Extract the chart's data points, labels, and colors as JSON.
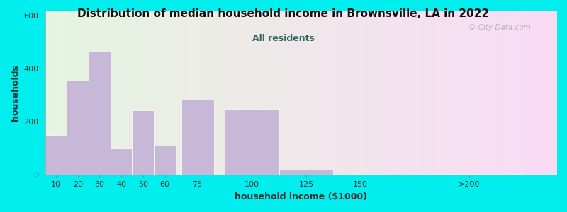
{
  "title": "Distribution of median household income in Brownsville, LA in 2022",
  "subtitle": "All residents",
  "xlabel": "household income ($1000)",
  "ylabel": "households",
  "background_color": "#00EEEE",
  "bar_color": "#c8b8d8",
  "watermark": "© City-Data.com",
  "ylim": [
    0,
    620
  ],
  "yticks": [
    0,
    200,
    400,
    600
  ],
  "bar_centers": [
    10,
    20,
    30,
    40,
    50,
    60,
    75,
    100,
    125,
    150,
    200
  ],
  "bar_heights": [
    150,
    355,
    465,
    100,
    245,
    110,
    285,
    250,
    20,
    5,
    5
  ],
  "bar_widths": [
    10,
    10,
    10,
    10,
    10,
    10,
    15,
    25,
    25,
    25,
    50
  ],
  "xtick_labels": [
    "10",
    "20",
    "30",
    "40",
    "50",
    "60",
    "75",
    "100",
    "125",
    "150",
    ">200"
  ],
  "xtick_positions": [
    10,
    20,
    30,
    40,
    50,
    60,
    75,
    100,
    125,
    150,
    200
  ],
  "xlim": [
    5,
    240
  ],
  "subtitle_color": "#336666",
  "title_color": "#111111",
  "label_color": "#333333"
}
